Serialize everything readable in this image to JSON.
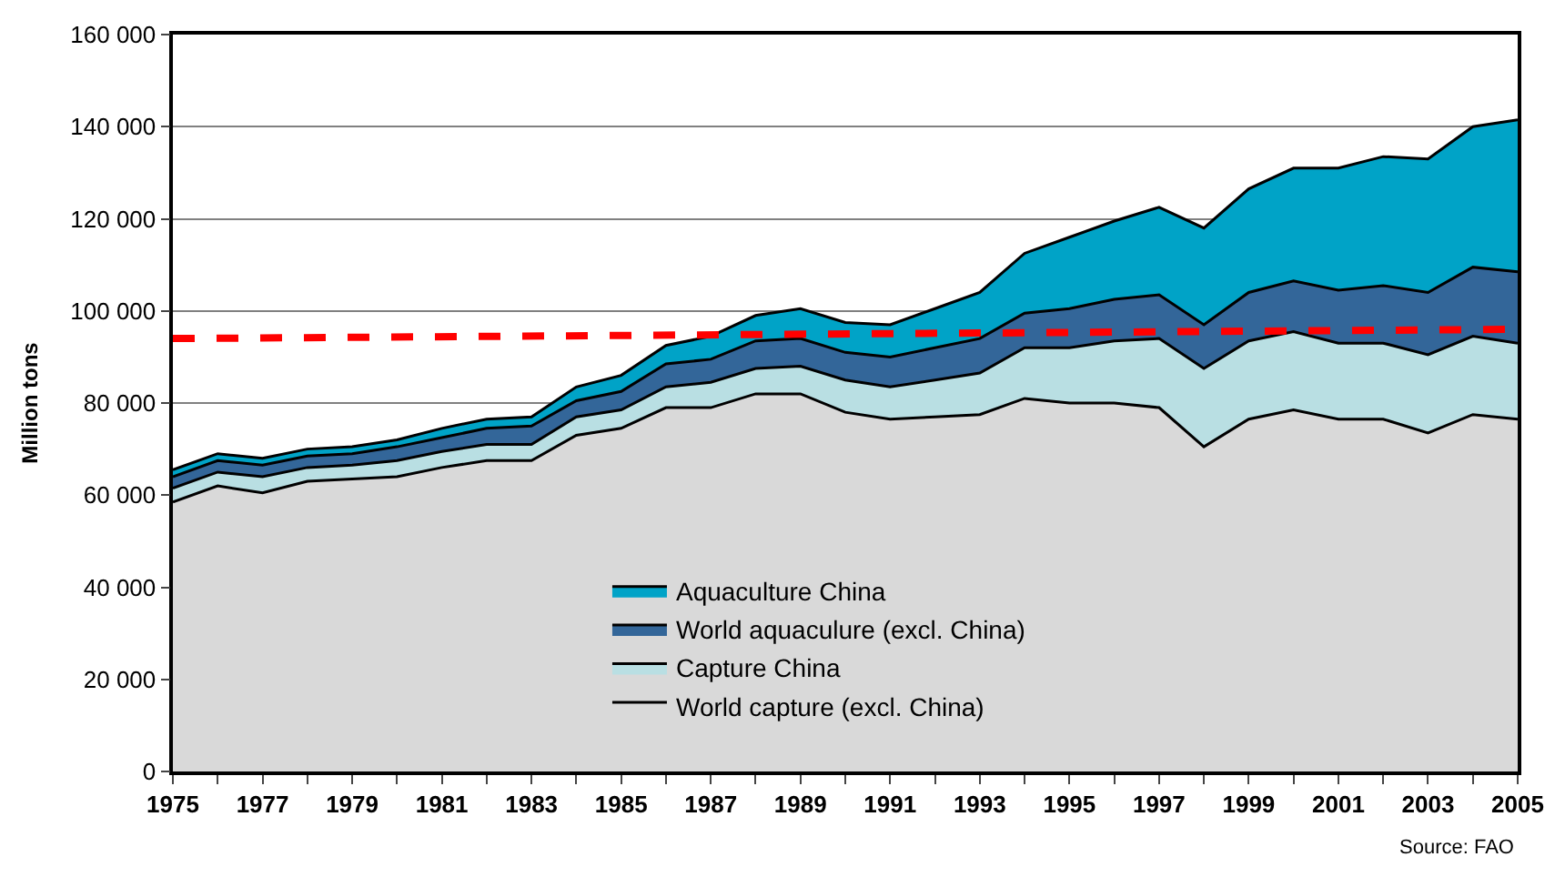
{
  "chart_data": {
    "type": "area",
    "stacked": true,
    "ylabel": "Million tons",
    "x": [
      1975,
      1976,
      1977,
      1978,
      1979,
      1980,
      1981,
      1982,
      1983,
      1984,
      1985,
      1986,
      1987,
      1988,
      1989,
      1990,
      1991,
      1992,
      1993,
      1994,
      1995,
      1996,
      1997,
      1998,
      1999,
      2000,
      2001,
      2002,
      2003,
      2004,
      2005
    ],
    "series": [
      {
        "name": "World capture (excl. China)",
        "color": "#d9d9d9",
        "values": [
          58500,
          62000,
          60500,
          63000,
          63500,
          64000,
          66000,
          67500,
          67500,
          73000,
          74500,
          79000,
          79000,
          82000,
          82000,
          78000,
          76500,
          77000,
          77500,
          81000,
          80000,
          80000,
          79000,
          70500,
          76500,
          78500,
          76500,
          76500,
          73500,
          77500,
          76500
        ]
      },
      {
        "name": "Capture China",
        "color": "#b9dfe3",
        "values": [
          3000,
          3000,
          3500,
          3000,
          3000,
          3500,
          3500,
          3500,
          3500,
          4000,
          4000,
          4500,
          5500,
          5500,
          6000,
          7000,
          7000,
          8000,
          9000,
          11000,
          12000,
          13500,
          15000,
          17000,
          17000,
          17000,
          16500,
          16500,
          17000,
          17000,
          16500
        ]
      },
      {
        "name": "World aquaculure (excl. China)",
        "color": "#336699",
        "values": [
          2500,
          2500,
          2500,
          2500,
          2500,
          3000,
          3000,
          3500,
          4000,
          3500,
          4000,
          5000,
          5000,
          6000,
          6000,
          6000,
          6500,
          7000,
          7500,
          7500,
          8500,
          9000,
          9500,
          9500,
          10500,
          11000,
          11500,
          12500,
          13500,
          15000,
          15500
        ]
      },
      {
        "name": "Aquaculture China",
        "color": "#00a3c7",
        "values": [
          1500,
          1500,
          1500,
          1500,
          1500,
          1500,
          2000,
          2000,
          2000,
          3000,
          3500,
          4000,
          5000,
          5500,
          6500,
          6500,
          7000,
          8500,
          10000,
          13000,
          15500,
          17000,
          19000,
          21000,
          22500,
          24500,
          26500,
          28000,
          29000,
          30500,
          33000
        ]
      },
      {
        "type": "line",
        "color": "#ff0000",
        "line_style": "dashed",
        "x": [
          1975,
          2005
        ],
        "values": [
          94000,
          96000
        ]
      }
    ],
    "xlim": [
      1975,
      2005
    ],
    "xticks": [
      1975,
      {
        "value": 1976,
        "label": null
      },
      1977,
      {
        "value": 1978,
        "label": null
      },
      1979,
      {
        "value": 1980,
        "label": null
      },
      1981,
      {
        "value": 1982,
        "label": null
      },
      1983,
      {
        "value": 1984,
        "label": null
      },
      1985,
      {
        "value": 1986,
        "label": null
      },
      1987,
      {
        "value": 1988,
        "label": null
      },
      1989,
      {
        "value": 1990,
        "label": null
      },
      1991,
      {
        "value": 1992,
        "label": null
      },
      1993,
      {
        "value": 1994,
        "label": null
      },
      1995,
      {
        "value": 1996,
        "label": null
      },
      1997,
      {
        "value": 1998,
        "label": null
      },
      1999,
      {
        "value": 2000,
        "label": null
      },
      2001,
      {
        "value": 2002,
        "label": null
      },
      2003,
      {
        "value": 2004,
        "label": null
      },
      2005
    ],
    "ylim": [
      0,
      160000
    ],
    "yticks": [
      0,
      {
        "value": 20000,
        "label": "20 000"
      },
      {
        "value": 40000,
        "label": "40 000"
      },
      {
        "value": 60000,
        "label": "60 000"
      },
      {
        "value": 80000,
        "label": "80 000"
      },
      {
        "value": 100000,
        "label": "100 000"
      },
      {
        "value": 120000,
        "label": "120 000"
      },
      {
        "value": 140000,
        "label": "140 000"
      },
      {
        "value": 160000,
        "label": "160 000"
      }
    ],
    "grid": "y",
    "legend": "bottom",
    "annotations": [
      "Source: FAO"
    ]
  }
}
